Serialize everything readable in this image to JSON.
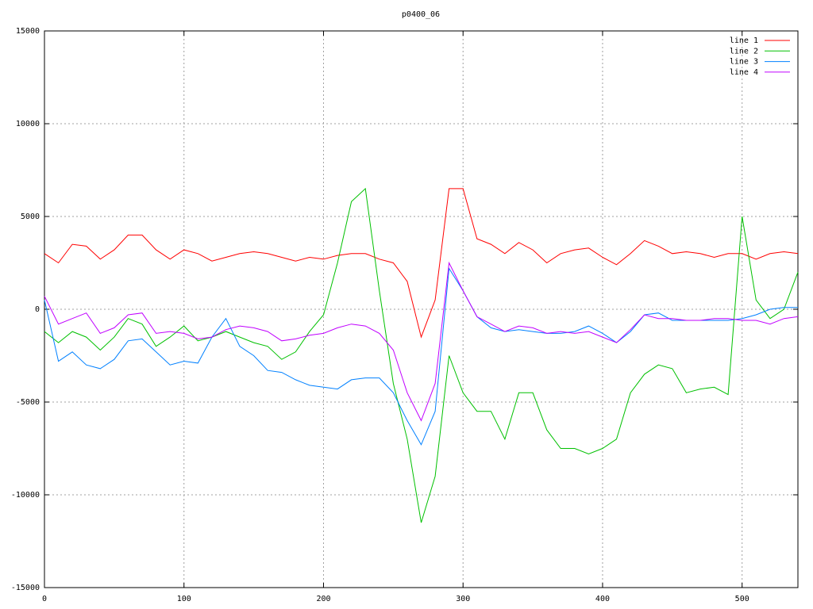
{
  "chart_data": {
    "type": "line",
    "title": "p0400_06",
    "x": [
      0,
      10,
      20,
      30,
      40,
      50,
      60,
      70,
      80,
      90,
      100,
      110,
      120,
      130,
      140,
      150,
      160,
      170,
      180,
      190,
      200,
      210,
      220,
      230,
      240,
      250,
      260,
      270,
      280,
      290,
      300,
      310,
      320,
      330,
      340,
      350,
      360,
      370,
      380,
      390,
      400,
      410,
      420,
      430,
      440,
      450,
      460,
      470,
      480,
      490,
      500,
      510,
      520,
      530,
      540
    ],
    "series": [
      {
        "name": "line 1",
        "color": "#ff0000",
        "values": [
          3000,
          2500,
          3500,
          3400,
          2700,
          3200,
          4000,
          4000,
          3200,
          2700,
          3200,
          3000,
          2600,
          2800,
          3000,
          3100,
          3000,
          2800,
          2600,
          2800,
          2700,
          2900,
          3000,
          3000,
          2700,
          2500,
          1500,
          -1500,
          500,
          6500,
          6500,
          3800,
          3500,
          3000,
          3600,
          3200,
          2500,
          3000,
          3200,
          3300,
          2800,
          2400,
          3000,
          3700,
          3400,
          3000,
          3100,
          3000,
          2800,
          3000,
          3000,
          2700,
          3000,
          3100,
          3000
        ]
      },
      {
        "name": "line 2",
        "color": "#00c000",
        "values": [
          -1200,
          -1800,
          -1200,
          -1500,
          -2200,
          -1500,
          -500,
          -800,
          -2000,
          -1500,
          -900,
          -1700,
          -1500,
          -1200,
          -1500,
          -1800,
          -2000,
          -2700,
          -2300,
          -1200,
          -300,
          2500,
          5800,
          6500,
          1000,
          -4000,
          -7000,
          -11500,
          -9000,
          -2500,
          -4500,
          -5500,
          -5500,
          -7000,
          -4500,
          -4500,
          -6500,
          -7500,
          -7500,
          -7800,
          -7500,
          -7000,
          -4500,
          -3500,
          -3000,
          -3200,
          -4500,
          -4300,
          -4200,
          -4600,
          5000,
          500,
          -500,
          0,
          2000
        ]
      },
      {
        "name": "line 3",
        "color": "#0080ff",
        "values": [
          500,
          -2800,
          -2300,
          -3000,
          -3200,
          -2700,
          -1700,
          -1600,
          -2300,
          -3000,
          -2800,
          -2900,
          -1500,
          -500,
          -2000,
          -2500,
          -3300,
          -3400,
          -3800,
          -4100,
          -4200,
          -4300,
          -3800,
          -3700,
          -3700,
          -4500,
          -6000,
          -7300,
          -5500,
          2200,
          1000,
          -400,
          -1000,
          -1200,
          -1100,
          -1200,
          -1300,
          -1300,
          -1200,
          -900,
          -1300,
          -1800,
          -1200,
          -300,
          -200,
          -600,
          -600,
          -600,
          -600,
          -600,
          -500,
          -300,
          0,
          100,
          100
        ]
      },
      {
        "name": "line 4",
        "color": "#c000ff",
        "values": [
          700,
          -800,
          -500,
          -200,
          -1300,
          -1000,
          -300,
          -200,
          -1300,
          -1200,
          -1300,
          -1600,
          -1500,
          -1100,
          -900,
          -1000,
          -1200,
          -1700,
          -1600,
          -1400,
          -1300,
          -1000,
          -800,
          -900,
          -1300,
          -2200,
          -4500,
          -6000,
          -4000,
          2500,
          1000,
          -400,
          -800,
          -1200,
          -900,
          -1000,
          -1300,
          -1200,
          -1300,
          -1200,
          -1500,
          -1800,
          -1100,
          -300,
          -500,
          -500,
          -600,
          -600,
          -500,
          -500,
          -600,
          -600,
          -800,
          -500,
          -400
        ]
      }
    ],
    "xlim": [
      0,
      540
    ],
    "xticks": [
      0,
      100,
      200,
      300,
      400,
      500
    ],
    "ylim": [
      -15000,
      15000
    ],
    "yticks": [
      -15000,
      -10000,
      -5000,
      0,
      5000,
      10000,
      15000
    ],
    "grid": true,
    "legend": "top-right"
  }
}
